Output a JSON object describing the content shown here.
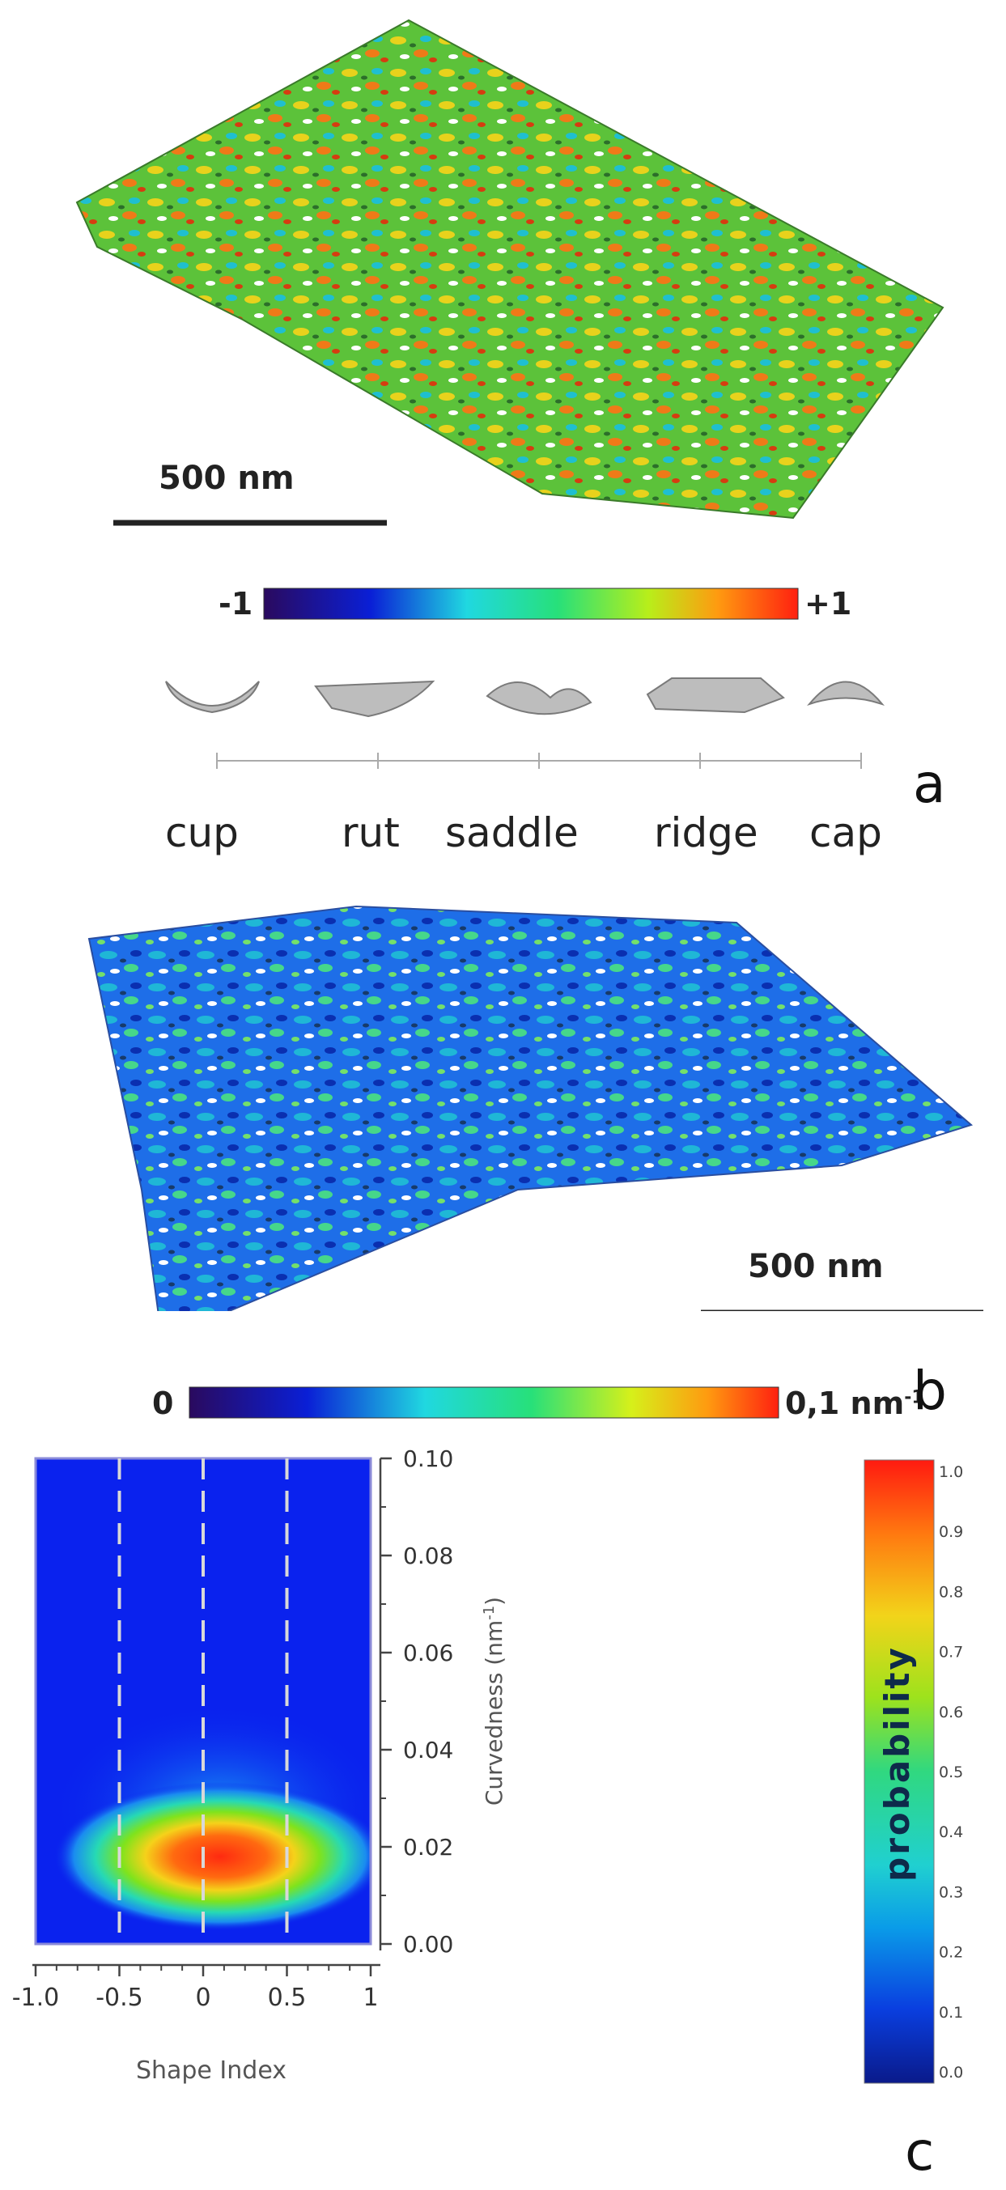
{
  "panel_a": {
    "scalebar_label": "500 nm",
    "colorbar": {
      "min_label": "-1",
      "max_label": "+1"
    },
    "shapes": [
      "cup",
      "rut",
      "saddle",
      "ridge",
      "cap"
    ],
    "letter": "a"
  },
  "panel_b": {
    "scalebar_label": "500 nm",
    "colorbar": {
      "min_label": "0",
      "max_label": "0,1 nm",
      "max_sup": "-1"
    },
    "letter": "b"
  },
  "panel_c": {
    "letter": "c",
    "colorbar_title": "probability",
    "colorbar_ticks": [
      "1.0",
      "0.9",
      "0.8",
      "0.7",
      "0.6",
      "0.5",
      "0.4",
      "0.3",
      "0.2",
      "0.1",
      "0.0"
    ]
  },
  "chart_data": {
    "type": "heatmap",
    "xlabel": "Shape Index",
    "ylabel": "Curvedness (nm",
    "ylabel_sup": "-1",
    "ylabel_close": ")",
    "xlim": [
      -1.0,
      1.0
    ],
    "ylim": [
      0.0,
      0.1
    ],
    "x_ticks": [
      "-1.0",
      "-0.5",
      "0",
      "0.5",
      "1"
    ],
    "x_tick_values": [
      -1.0,
      -0.5,
      0,
      0.5,
      1.0
    ],
    "y_ticks": [
      "0.00",
      "0.02",
      "0.04",
      "0.06",
      "0.08",
      "0.10"
    ],
    "y_tick_values": [
      0.0,
      0.02,
      0.04,
      0.06,
      0.08,
      0.1
    ],
    "dashed_lines_x": [
      -0.5,
      0,
      0.5
    ],
    "color_range": [
      0.0,
      1.0
    ],
    "peak": {
      "x": 0.1,
      "y": 0.018,
      "probability": 1.0
    }
  },
  "colors": {
    "colormap": [
      "#2a0a5e",
      "#0a1fd6",
      "#0a7cf0",
      "#20d8e0",
      "#27e07a",
      "#7fe31c",
      "#f0f01e",
      "#ff9a10",
      "#ff2010"
    ],
    "heatmap_background": "#0a22ee",
    "scalebar": "#222222"
  }
}
